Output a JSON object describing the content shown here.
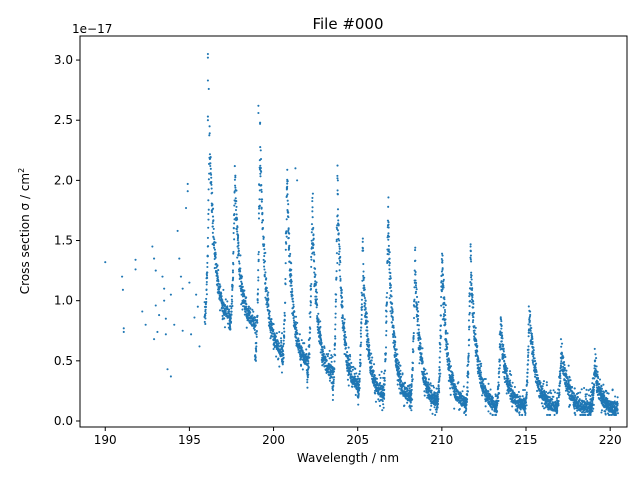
{
  "chart_data": {
    "type": "scatter",
    "title": "File #000",
    "xlabel": "Wavelength / nm",
    "ylabel_main": "Cross section σ / cm",
    "ylabel_sup": "2",
    "offset_text": "1e−17",
    "xlim": [
      188.5,
      221.0
    ],
    "ylim": [
      -0.05,
      3.2
    ],
    "xticks": [
      190,
      195,
      200,
      205,
      210,
      215,
      220
    ],
    "xtick_labels": [
      "190",
      "195",
      "200",
      "205",
      "210",
      "215",
      "220"
    ],
    "yticks": [
      0.0,
      0.5,
      1.0,
      1.5,
      2.0,
      2.5,
      3.0
    ],
    "ytick_labels": [
      "0.0",
      "0.5",
      "1.0",
      "1.5",
      "2.0",
      "2.5",
      "3.0"
    ],
    "grid": false,
    "marker_color": "#1f77b4",
    "sparse_points": [
      [
        190.0,
        1.32
      ],
      [
        191.0,
        1.2
      ],
      [
        191.05,
        1.09
      ],
      [
        191.1,
        0.77
      ],
      [
        191.1,
        0.74
      ],
      [
        191.8,
        1.34
      ],
      [
        191.8,
        1.26
      ],
      [
        192.2,
        0.91
      ],
      [
        192.4,
        0.8
      ],
      [
        192.8,
        1.45
      ],
      [
        192.9,
        1.35
      ],
      [
        192.9,
        0.68
      ],
      [
        193.0,
        1.25
      ],
      [
        193.0,
        0.96
      ],
      [
        193.1,
        0.74
      ],
      [
        193.2,
        0.88
      ],
      [
        193.4,
        1.2
      ],
      [
        193.5,
        1.1
      ],
      [
        193.5,
        1.0
      ],
      [
        193.6,
        0.85
      ],
      [
        193.6,
        0.72
      ],
      [
        193.7,
        0.43
      ],
      [
        193.9,
        0.37
      ],
      [
        193.9,
        1.05
      ],
      [
        194.1,
        0.8
      ],
      [
        194.3,
        1.58
      ],
      [
        194.4,
        1.35
      ],
      [
        194.5,
        1.2
      ],
      [
        194.6,
        1.1
      ],
      [
        194.6,
        0.75
      ],
      [
        194.8,
        1.77
      ],
      [
        194.9,
        1.97
      ],
      [
        194.9,
        1.91
      ],
      [
        195.0,
        1.15
      ],
      [
        195.1,
        0.72
      ],
      [
        195.3,
        0.86
      ],
      [
        195.4,
        1.05
      ],
      [
        195.5,
        0.95
      ],
      [
        195.6,
        0.62
      ],
      [
        196.1,
        3.05
      ],
      [
        196.1,
        3.02
      ],
      [
        196.1,
        2.83
      ],
      [
        196.15,
        2.76
      ],
      [
        196.1,
        2.53
      ],
      [
        196.1,
        2.5
      ],
      [
        199.1,
        2.62
      ],
      [
        199.1,
        2.56
      ],
      [
        199.2,
        2.48
      ],
      [
        201.3,
        2.1
      ],
      [
        201.4,
        2.0
      ]
    ],
    "bands": [
      {
        "center": 196.2,
        "peak": 2.4,
        "base": 0.85,
        "width": 0.55
      },
      {
        "center": 197.7,
        "peak": 2.02,
        "base": 0.8,
        "width": 0.55
      },
      {
        "center": 199.2,
        "peak": 2.3,
        "base": 0.55,
        "width": 0.55
      },
      {
        "center": 200.8,
        "peak": 2.0,
        "base": 0.48,
        "width": 0.55
      },
      {
        "center": 202.3,
        "peak": 1.74,
        "base": 0.38,
        "width": 0.55
      },
      {
        "center": 203.8,
        "peak": 1.95,
        "base": 0.27,
        "width": 0.55
      },
      {
        "center": 205.3,
        "peak": 1.4,
        "base": 0.22,
        "width": 0.55
      },
      {
        "center": 206.8,
        "peak": 1.68,
        "base": 0.18,
        "width": 0.55
      },
      {
        "center": 208.4,
        "peak": 1.33,
        "base": 0.15,
        "width": 0.55
      },
      {
        "center": 210.0,
        "peak": 1.3,
        "base": 0.13,
        "width": 0.55
      },
      {
        "center": 211.7,
        "peak": 1.33,
        "base": 0.12,
        "width": 0.55
      },
      {
        "center": 213.5,
        "peak": 0.8,
        "base": 0.12,
        "width": 0.55
      },
      {
        "center": 215.2,
        "peak": 0.88,
        "base": 0.11,
        "width": 0.55
      },
      {
        "center": 217.1,
        "peak": 0.57,
        "base": 0.1,
        "width": 0.55
      },
      {
        "center": 219.1,
        "peak": 0.45,
        "base": 0.1,
        "width": 0.55
      }
    ]
  }
}
